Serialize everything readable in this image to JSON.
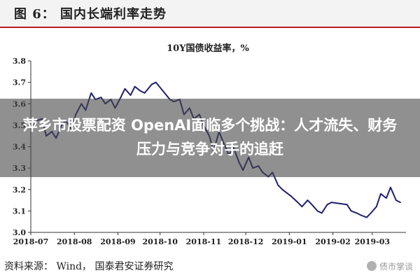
{
  "figure": {
    "title": "图 6： 国内长端利率走势",
    "source": "资料来源： Wind， 国泰君安证券研究",
    "watermark": "债市掌谈"
  },
  "overlay": {
    "headline": "萍乡市股票配资 OpenAI面临多个挑战：人才流失、财务压力与竞争对手的追赶"
  },
  "chart_data": {
    "type": "line",
    "title": "10Y国债收益率，%",
    "xlabel": "",
    "ylabel": "",
    "ylim": [
      3.0,
      3.8
    ],
    "yticks": [
      "3.0",
      "3.1",
      "3.2",
      "3.3",
      "3.4",
      "3.5",
      "3.6",
      "3.7",
      "3.8"
    ],
    "xticks": [
      "2018-07",
      "2018-08",
      "2018-09",
      "2018-10",
      "2018-11",
      "2018-12",
      "2019-01",
      "2019-02",
      "2019-03"
    ],
    "grid": false,
    "legend": "none",
    "line_color": "#1f1f6e",
    "series": [
      {
        "x": [
          "2018-07-02",
          "2018-07-05",
          "2018-07-09",
          "2018-07-12",
          "2018-07-16",
          "2018-07-19",
          "2018-07-23",
          "2018-07-26",
          "2018-07-30",
          "2018-08-02",
          "2018-08-06",
          "2018-08-09",
          "2018-08-13",
          "2018-08-16",
          "2018-08-20",
          "2018-08-23",
          "2018-08-27",
          "2018-08-30",
          "2018-09-03",
          "2018-09-06",
          "2018-09-10",
          "2018-09-13",
          "2018-09-17",
          "2018-09-20",
          "2018-09-25",
          "2018-09-28",
          "2018-10-08",
          "2018-10-11",
          "2018-10-15",
          "2018-10-18",
          "2018-10-22",
          "2018-10-25",
          "2018-10-29",
          "2018-11-01",
          "2018-11-05",
          "2018-11-08",
          "2018-11-12",
          "2018-11-15",
          "2018-11-19",
          "2018-11-22",
          "2018-11-26",
          "2018-11-29",
          "2018-12-03",
          "2018-12-06",
          "2018-12-10",
          "2018-12-13",
          "2018-12-17",
          "2018-12-20",
          "2018-12-24",
          "2018-12-27",
          "2019-01-02",
          "2019-01-07",
          "2019-01-10",
          "2019-01-14",
          "2019-01-17",
          "2019-01-21",
          "2019-01-24",
          "2019-01-28",
          "2019-01-31",
          "2019-02-11",
          "2019-02-14",
          "2019-02-18",
          "2019-02-21",
          "2019-02-25",
          "2019-02-28",
          "2019-03-04",
          "2019-03-07",
          "2019-03-11",
          "2019-03-14",
          "2019-03-18",
          "2019-03-21"
        ],
        "values": [
          3.49,
          3.52,
          3.53,
          3.45,
          3.47,
          3.44,
          3.5,
          3.52,
          3.48,
          3.55,
          3.6,
          3.57,
          3.65,
          3.62,
          3.63,
          3.6,
          3.62,
          3.58,
          3.63,
          3.67,
          3.64,
          3.68,
          3.66,
          3.65,
          3.69,
          3.7,
          3.62,
          3.61,
          3.62,
          3.55,
          3.58,
          3.53,
          3.55,
          3.5,
          3.45,
          3.38,
          3.47,
          3.42,
          3.36,
          3.4,
          3.33,
          3.29,
          3.35,
          3.3,
          3.31,
          3.28,
          3.26,
          3.28,
          3.22,
          3.2,
          3.17,
          3.14,
          3.12,
          3.15,
          3.13,
          3.1,
          3.09,
          3.13,
          3.14,
          3.13,
          3.1,
          3.09,
          3.08,
          3.07,
          3.09,
          3.12,
          3.18,
          3.16,
          3.21,
          3.15,
          3.14
        ]
      }
    ]
  }
}
